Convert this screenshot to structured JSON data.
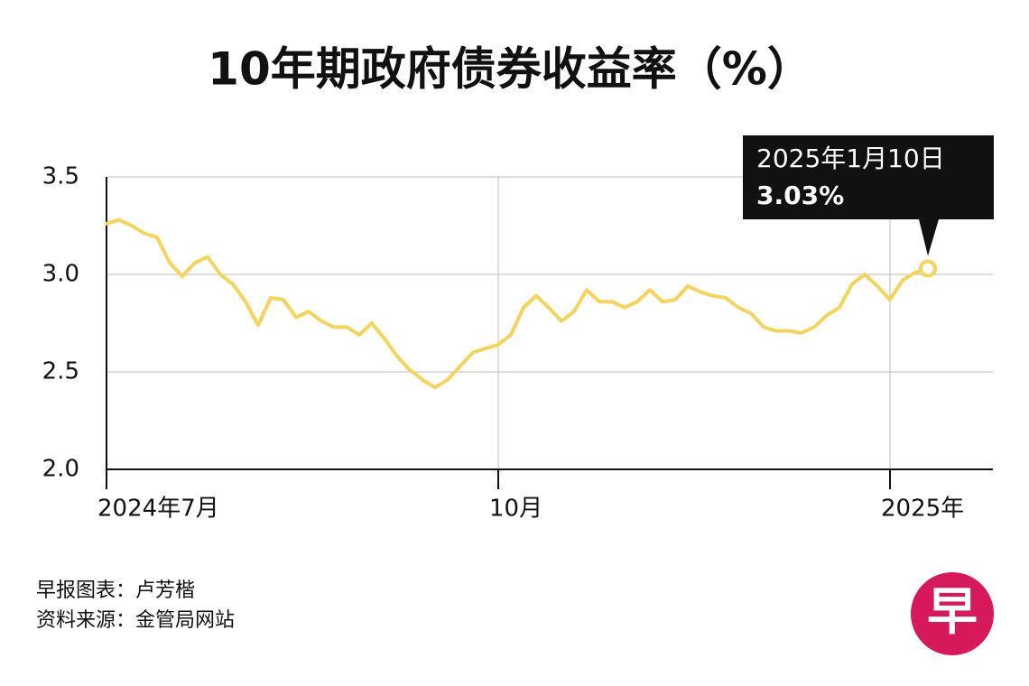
{
  "chart_data": {
    "type": "line",
    "title": "10年期政府债券收益率（%）",
    "categories": [
      "2024年7月",
      null,
      null,
      null,
      null,
      null,
      null,
      null,
      null,
      null,
      null,
      null,
      null,
      null,
      null,
      null,
      null,
      null,
      null,
      null,
      null,
      null,
      null,
      null,
      null,
      null,
      null,
      null,
      null,
      null,
      null,
      "10月",
      null,
      null,
      null,
      null,
      null,
      null,
      null,
      null,
      null,
      null,
      null,
      null,
      null,
      null,
      null,
      null,
      null,
      null,
      null,
      null,
      null,
      null,
      null,
      null,
      null,
      null,
      null,
      null,
      null,
      null,
      "2025年",
      null,
      null,
      null
    ],
    "series": [
      {
        "color": "#f4d35e",
        "values": [
          3.26,
          3.28,
          3.25,
          3.21,
          3.19,
          3.06,
          2.99,
          3.06,
          3.09,
          3.0,
          2.95,
          2.86,
          2.74,
          2.88,
          2.87,
          2.78,
          2.81,
          2.76,
          2.73,
          2.73,
          2.69,
          2.75,
          2.67,
          2.58,
          2.51,
          2.46,
          2.42,
          2.46,
          2.53,
          2.6,
          2.62,
          2.64,
          2.69,
          2.83,
          2.89,
          2.83,
          2.76,
          2.81,
          2.92,
          2.86,
          2.86,
          2.83,
          2.86,
          2.92,
          2.86,
          2.87,
          2.94,
          2.91,
          2.89,
          2.88,
          2.83,
          2.8,
          2.73,
          2.71,
          2.71,
          2.7,
          2.73,
          2.79,
          2.83,
          2.95,
          3.0,
          2.94,
          2.87,
          2.97,
          3.01,
          3.03
        ]
      }
    ],
    "ylim": [
      2.0,
      3.5
    ],
    "yticks": [
      {
        "value": 2.0,
        "label": "2.0"
      },
      2.5,
      {
        "value": 3.0,
        "label": "3.0"
      },
      3.5
    ],
    "grid": true,
    "callout": {
      "label": "2025年1月10日",
      "value_label": "3.03%"
    }
  },
  "footer": {
    "credit": "早报图表：卢芳楷",
    "source": "资料来源：金管局网站"
  },
  "logo": "早"
}
